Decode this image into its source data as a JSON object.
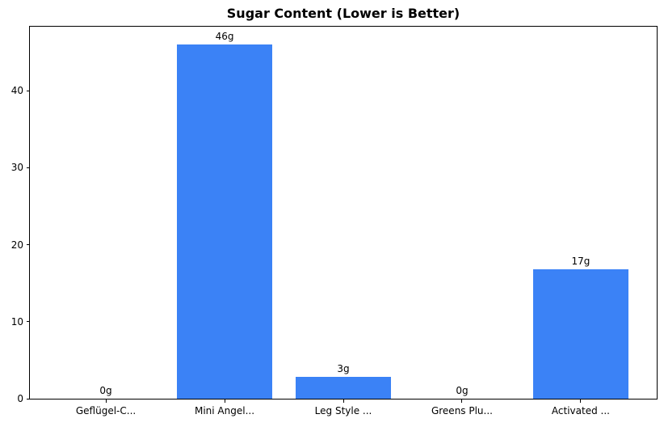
{
  "chart_data": {
    "type": "bar",
    "title": "Sugar Content (Lower is Better)",
    "categories": [
      "Geflügel-C...",
      "Mini Angel...",
      "Leg Style ...",
      "Greens Plu...",
      "Activated ..."
    ],
    "values": [
      0,
      46,
      2.8,
      0,
      16.8
    ],
    "value_labels": [
      "0g",
      "46g",
      "3g",
      "0g",
      "17g"
    ],
    "xlabel": "",
    "ylabel": "",
    "ylim": [
      0,
      48.3
    ],
    "yticks": [
      0,
      10,
      20,
      30,
      40
    ],
    "bar_color": "#3b82f6",
    "text_color": "#000000",
    "grid": false,
    "legend": null,
    "bar_width_fraction": 0.8
  }
}
